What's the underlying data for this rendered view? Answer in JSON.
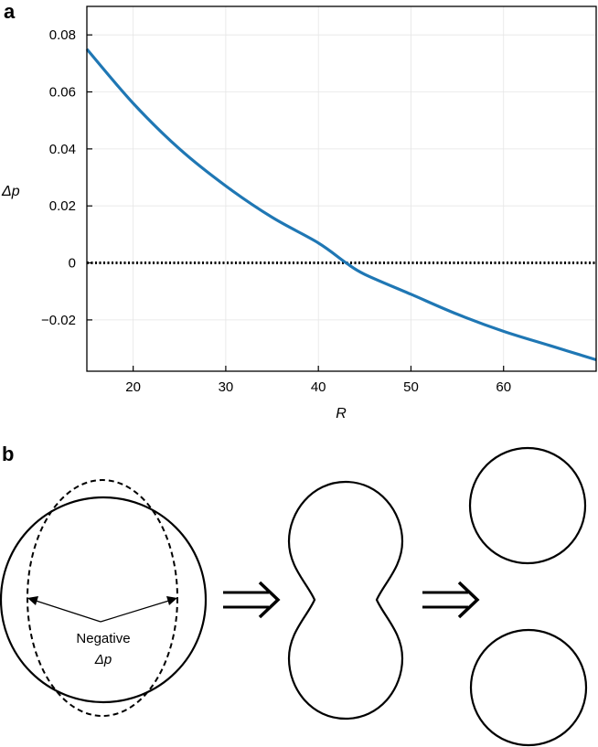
{
  "panels": {
    "a_label": "a",
    "b_label": "b"
  },
  "chart_data": {
    "type": "line",
    "title": "",
    "xlabel": "R",
    "ylabel": "Δp",
    "xlim": [
      15,
      70
    ],
    "ylim": [
      -0.038,
      0.09
    ],
    "xticks": [
      20,
      30,
      40,
      50,
      60
    ],
    "yticks": [
      -0.02,
      0,
      0.02,
      0.04,
      0.06,
      0.08
    ],
    "ytick_labels": [
      "−0.02",
      "0",
      "0.02",
      "0.04",
      "0.06",
      "0.08"
    ],
    "xtick_labels": [
      "20",
      "30",
      "40",
      "50",
      "60"
    ],
    "grid": true,
    "series": [
      {
        "color": "#1f77b4",
        "style": "solid",
        "x": [
          15,
          20,
          25,
          30,
          35,
          40,
          43,
          45,
          50,
          55,
          60,
          65,
          70
        ],
        "y": [
          0.075,
          0.056,
          0.04,
          0.027,
          0.016,
          0.007,
          0.0,
          -0.004,
          -0.011,
          -0.018,
          -0.024,
          -0.029,
          -0.034
        ]
      },
      {
        "color": "#000000",
        "style": "dotted",
        "x": [
          15,
          70
        ],
        "y": [
          0,
          0
        ]
      }
    ]
  },
  "diagram": {
    "annotation_line1": "Negative",
    "annotation_line2": "Δp"
  },
  "colors": {
    "curve": "#1f77b4",
    "grid": "#e6e6e6"
  }
}
